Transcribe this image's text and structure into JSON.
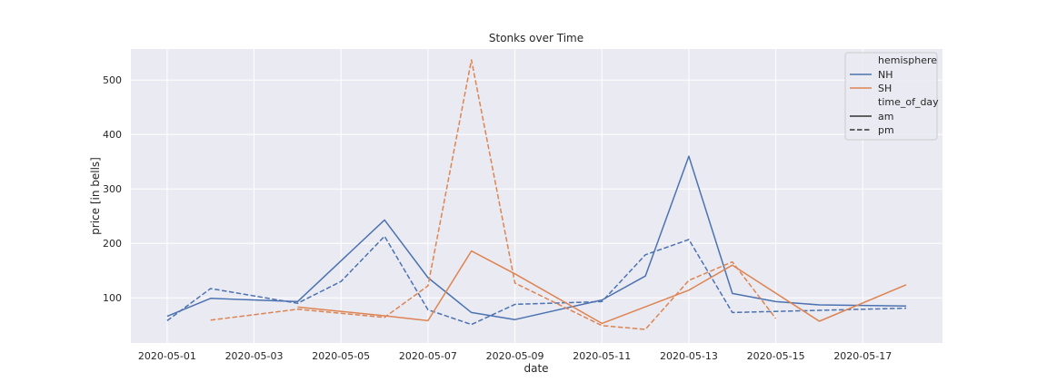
{
  "chart_data": {
    "type": "line",
    "title": "Stonks over Time",
    "xlabel": "date",
    "ylabel": "price [in bells]",
    "x_ticks": [
      "2020-05-01",
      "2020-05-03",
      "2020-05-05",
      "2020-05-07",
      "2020-05-09",
      "2020-05-11",
      "2020-05-13",
      "2020-05-15",
      "2020-05-17"
    ],
    "y_ticks": [
      100,
      200,
      300,
      400,
      500
    ],
    "xlim": [
      "2020-04-30T04:00",
      "2020-05-18T20:00"
    ],
    "ylim": [
      17,
      557
    ],
    "grid": true,
    "legend_position": "top-right",
    "legend": {
      "hue_title": "hemisphere",
      "hue_items": [
        {
          "label": "NH",
          "color": "#4c72b0"
        },
        {
          "label": "SH",
          "color": "#dd8452"
        }
      ],
      "style_title": "time_of_day",
      "style_items": [
        {
          "label": "am",
          "dash": "solid"
        },
        {
          "label": "pm",
          "dash": "dashed"
        }
      ]
    },
    "series": [
      {
        "hemisphere": "NH",
        "time_of_day": "am",
        "color": "#4c72b0",
        "dash": "solid",
        "points": [
          [
            "2020-05-01",
            66
          ],
          [
            "2020-05-02",
            99
          ],
          [
            "2020-05-04",
            93
          ],
          [
            "2020-05-06",
            243
          ],
          [
            "2020-05-07",
            137
          ],
          [
            "2020-05-08",
            73
          ],
          [
            "2020-05-09",
            60
          ],
          [
            "2020-05-11",
            96
          ],
          [
            "2020-05-12",
            140
          ],
          [
            "2020-05-13",
            360
          ],
          [
            "2020-05-14",
            108
          ],
          [
            "2020-05-15",
            93
          ],
          [
            "2020-05-16",
            87
          ],
          [
            "2020-05-18",
            85
          ]
        ]
      },
      {
        "hemisphere": "NH",
        "time_of_day": "pm",
        "color": "#4c72b0",
        "dash": "dashed",
        "points": [
          [
            "2020-05-01",
            58
          ],
          [
            "2020-05-02",
            117
          ],
          [
            "2020-05-04",
            90
          ],
          [
            "2020-05-05",
            130
          ],
          [
            "2020-05-06",
            213
          ],
          [
            "2020-05-07",
            78
          ],
          [
            "2020-05-08",
            51
          ],
          [
            "2020-05-09",
            88
          ],
          [
            "2020-05-11",
            93
          ],
          [
            "2020-05-12",
            179
          ],
          [
            "2020-05-13",
            207
          ],
          [
            "2020-05-14",
            73
          ],
          [
            "2020-05-16",
            77
          ],
          [
            "2020-05-18",
            81
          ]
        ]
      },
      {
        "hemisphere": "SH",
        "time_of_day": "am",
        "color": "#dd8452",
        "dash": "solid",
        "points": [
          [
            "2020-05-04",
            83
          ],
          [
            "2020-05-06",
            67
          ],
          [
            "2020-05-07",
            58
          ],
          [
            "2020-05-08",
            186
          ],
          [
            "2020-05-09",
            144
          ],
          [
            "2020-05-11",
            53
          ],
          [
            "2020-05-13",
            114
          ],
          [
            "2020-05-14",
            160
          ],
          [
            "2020-05-16",
            57
          ],
          [
            "2020-05-18",
            124
          ]
        ]
      },
      {
        "hemisphere": "SH",
        "time_of_day": "pm",
        "color": "#dd8452",
        "dash": "dashed",
        "points": [
          [
            "2020-05-02",
            59
          ],
          [
            "2020-05-04",
            79
          ],
          [
            "2020-05-06",
            64
          ],
          [
            "2020-05-07",
            122
          ],
          [
            "2020-05-08",
            537
          ],
          [
            "2020-05-09",
            127
          ],
          [
            "2020-05-11",
            49
          ],
          [
            "2020-05-12",
            42
          ],
          [
            "2020-05-13",
            132
          ],
          [
            "2020-05-14",
            166
          ],
          [
            "2020-05-15",
            62
          ]
        ]
      }
    ]
  }
}
